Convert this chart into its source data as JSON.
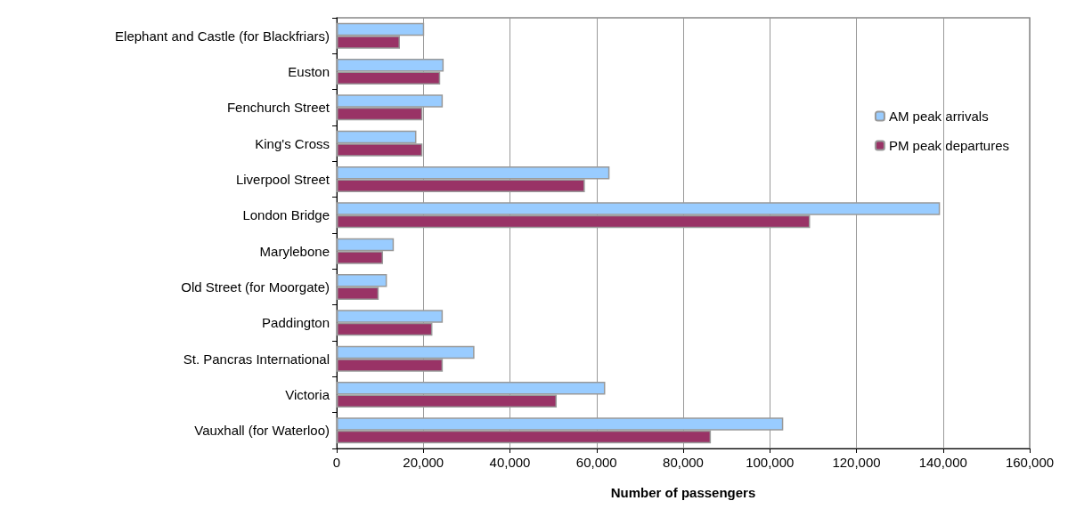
{
  "chart_data": {
    "type": "bar",
    "orientation": "horizontal",
    "xlabel": "Number of passengers",
    "categories": [
      "Elephant and Castle (for Blackfriars)",
      "Euston",
      "Fenchurch Street",
      "King's Cross",
      "Liverpool Street",
      "London Bridge",
      "Marylebone",
      "Old Street (for Moorgate)",
      "Paddington",
      "St. Pancras International",
      "Victoria",
      "Vauxhall (for Waterloo)"
    ],
    "series": [
      {
        "name": "AM peak arrivals",
        "color": "#99ccff",
        "values": [
          20200,
          24700,
          24500,
          18400,
          63000,
          139300,
          13200,
          11600,
          24500,
          31800,
          62000,
          103100
        ]
      },
      {
        "name": "PM peak departures",
        "color": "#993366",
        "values": [
          14600,
          23900,
          19800,
          19800,
          57300,
          109300,
          10700,
          9700,
          22100,
          24500,
          50800,
          86400
        ]
      }
    ],
    "xlim": [
      0,
      160000
    ],
    "xticks": [
      0,
      {
        "value": 20000,
        "label": "20,000"
      },
      {
        "value": 40000,
        "label": "40,000"
      },
      {
        "value": 60000,
        "label": "60,000"
      },
      {
        "value": 80000,
        "label": "80,000"
      },
      {
        "value": 100000,
        "label": "100,000"
      },
      {
        "value": 120000,
        "label": "120,000"
      },
      {
        "value": 140000,
        "label": "140,000"
      },
      {
        "value": 160000,
        "label": "160,000"
      }
    ],
    "grid": "x",
    "legend": "right"
  }
}
